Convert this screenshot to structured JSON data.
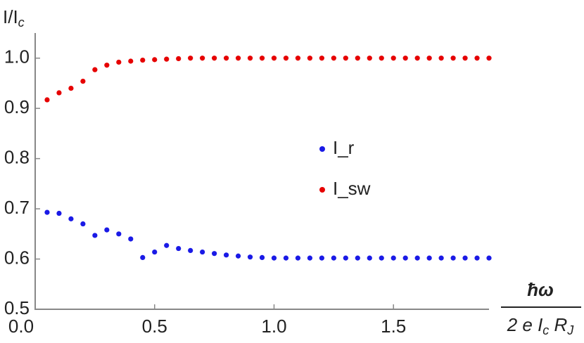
{
  "chart_data": {
    "type": "scatter",
    "y_label": [
      "I/I",
      "c"
    ],
    "x_label": {
      "numerator": "ħω",
      "denominator": [
        "2 e I",
        "c",
        " R",
        "J"
      ]
    },
    "x": [
      0.05,
      0.1,
      0.15,
      0.2,
      0.25,
      0.3,
      0.35,
      0.4,
      0.45,
      0.5,
      0.55,
      0.6,
      0.65,
      0.7,
      0.75,
      0.8,
      0.85,
      0.9,
      0.95,
      1.0,
      1.05,
      1.1,
      1.15,
      1.2,
      1.25,
      1.3,
      1.35,
      1.4,
      1.45,
      1.5,
      1.55,
      1.6,
      1.65,
      1.7,
      1.75,
      1.8,
      1.85,
      1.9
    ],
    "series": [
      {
        "name": "I_r",
        "color": "#1a1ae6",
        "values": [
          0.693,
          0.691,
          0.68,
          0.67,
          0.647,
          0.658,
          0.65,
          0.64,
          0.603,
          0.614,
          0.627,
          0.621,
          0.617,
          0.614,
          0.611,
          0.608,
          0.606,
          0.604,
          0.603,
          0.602,
          0.602,
          0.602,
          0.602,
          0.602,
          0.602,
          0.602,
          0.602,
          0.602,
          0.602,
          0.602,
          0.602,
          0.602,
          0.602,
          0.602,
          0.602,
          0.602,
          0.602,
          0.602
        ]
      },
      {
        "name": "I_sw",
        "color": "#e60000",
        "values": [
          0.917,
          0.931,
          0.94,
          0.954,
          0.977,
          0.986,
          0.992,
          0.994,
          0.996,
          0.997,
          0.998,
          0.999,
          1.0,
          1.0,
          1.0,
          1.0,
          1.0,
          1.0,
          1.0,
          1.0,
          1.0,
          1.0,
          1.0,
          1.0,
          1.0,
          1.0,
          1.0,
          1.0,
          1.0,
          1.0,
          1.0,
          1.0,
          1.0,
          1.0,
          1.0,
          1.0,
          1.0,
          1.0
        ]
      }
    ],
    "xlim": [
      0,
      1.9
    ],
    "ylim": [
      0.5,
      1.05
    ],
    "xticks": [
      {
        "value": 0,
        "label": "0.0"
      },
      0.5,
      {
        "value": 1,
        "label": "1.0"
      },
      1.5
    ],
    "yticks": [
      0.5,
      0.6,
      0.7,
      0.8,
      0.9,
      {
        "value": 1,
        "label": "1.0"
      }
    ]
  }
}
